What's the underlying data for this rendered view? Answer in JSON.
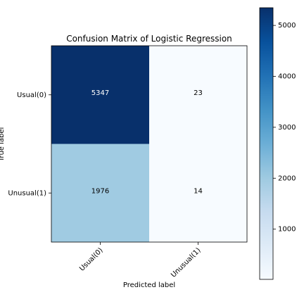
{
  "chart_data": {
    "type": "heatmap",
    "title": "Confusion Matrix of Logistic Regression",
    "xlabel": "Predicted label",
    "ylabel": "True label",
    "x_categories": [
      "Usual(0)",
      "Unusual(1)"
    ],
    "y_categories": [
      "Usual(0)",
      "Unusual(1)"
    ],
    "values": [
      [
        5347,
        23
      ],
      [
        1976,
        14
      ]
    ],
    "colormap": "Blues",
    "color_range": [
      14,
      5347
    ],
    "colorbar_ticks": [
      1000,
      2000,
      3000,
      4000,
      5000
    ],
    "colorbar_tick_labels": [
      "1000",
      "2000",
      "3000",
      "4000",
      "5000"
    ],
    "grid": false
  }
}
